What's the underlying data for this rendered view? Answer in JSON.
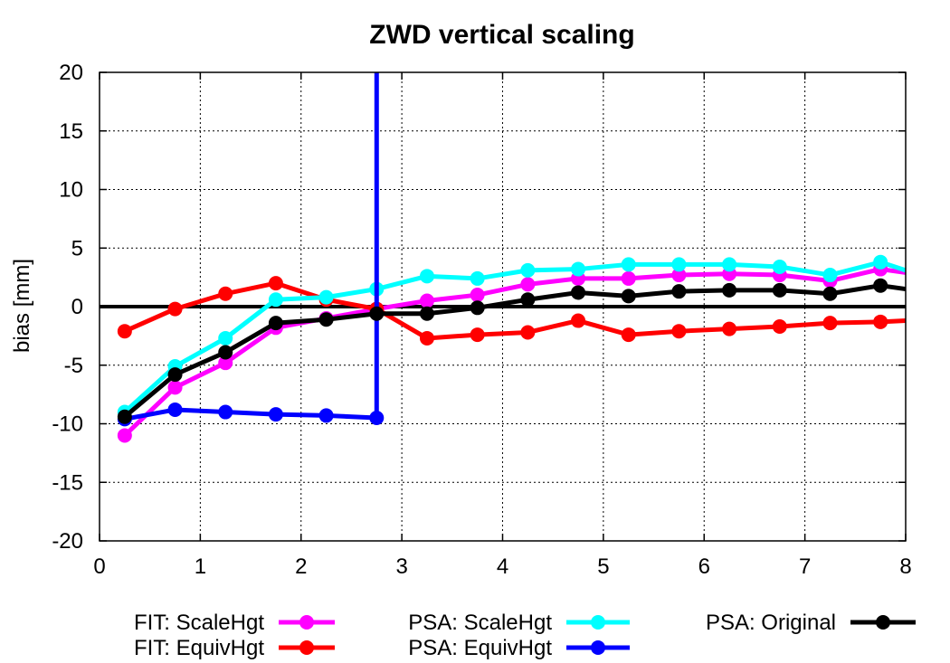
{
  "chart_data": {
    "type": "line",
    "title": "ZWD vertical scaling",
    "xlabel": "",
    "ylabel": "bias [mm]",
    "xlim": [
      0,
      8
    ],
    "ylim": [
      -20,
      20
    ],
    "x_ticks": [
      "0",
      "1",
      "2",
      "3",
      "4",
      "5",
      "6",
      "7",
      "8"
    ],
    "y_ticks": [
      "20",
      "15",
      "10",
      "5",
      "0",
      "-5",
      "-10",
      "-15",
      "-20"
    ],
    "grid": true,
    "zero_line": true,
    "legend_position": "bottom",
    "series": [
      {
        "name": "FIT: ScaleHgt",
        "color": "#ff00ff",
        "points": [
          [
            0.25,
            -11.0
          ],
          [
            0.75,
            -6.9
          ],
          [
            1.25,
            -4.8
          ],
          [
            1.75,
            -1.8
          ],
          [
            2.25,
            -1.0
          ],
          [
            2.75,
            -0.2
          ],
          [
            3.25,
            0.5
          ],
          [
            3.75,
            1.0
          ],
          [
            4.25,
            1.9
          ],
          [
            4.75,
            2.4
          ],
          [
            5.25,
            2.4
          ],
          [
            5.75,
            2.7
          ],
          [
            6.25,
            2.8
          ],
          [
            6.75,
            2.7
          ],
          [
            7.25,
            2.2
          ],
          [
            7.75,
            3.2
          ],
          [
            8.0,
            2.9
          ]
        ]
      },
      {
        "name": "FIT: EquivHgt",
        "color": "#ff0000",
        "points": [
          [
            0.25,
            -2.1
          ],
          [
            0.75,
            -0.2
          ],
          [
            1.25,
            1.1
          ],
          [
            1.75,
            2.0
          ],
          [
            2.25,
            0.6
          ],
          [
            2.75,
            -0.2
          ],
          [
            3.25,
            -2.7
          ],
          [
            3.75,
            -2.4
          ],
          [
            4.25,
            -2.2
          ],
          [
            4.75,
            -1.2
          ],
          [
            5.25,
            -2.4
          ],
          [
            5.75,
            -2.1
          ],
          [
            6.25,
            -1.9
          ],
          [
            6.75,
            -1.7
          ],
          [
            7.25,
            -1.4
          ],
          [
            7.75,
            -1.3
          ],
          [
            8.0,
            -1.2
          ]
        ]
      },
      {
        "name": "PSA: ScaleHgt",
        "color": "#00ffff",
        "points": [
          [
            0.25,
            -9.0
          ],
          [
            0.75,
            -5.1
          ],
          [
            1.25,
            -2.7
          ],
          [
            1.75,
            0.6
          ],
          [
            2.25,
            0.8
          ],
          [
            2.75,
            1.5
          ],
          [
            3.25,
            2.6
          ],
          [
            3.75,
            2.4
          ],
          [
            4.25,
            3.1
          ],
          [
            4.75,
            3.2
          ],
          [
            5.25,
            3.6
          ],
          [
            5.75,
            3.6
          ],
          [
            6.25,
            3.6
          ],
          [
            6.75,
            3.4
          ],
          [
            7.25,
            2.7
          ],
          [
            7.75,
            3.8
          ],
          [
            8.0,
            3.1
          ]
        ]
      },
      {
        "name": "PSA: EquivHgt",
        "color": "#0000ff",
        "points": [
          [
            0.25,
            -9.6
          ],
          [
            0.75,
            -8.8
          ],
          [
            1.25,
            -9.0
          ],
          [
            1.75,
            -9.2
          ],
          [
            2.25,
            -9.3
          ],
          [
            2.75,
            -9.5
          ]
        ],
        "spike": {
          "x": 2.75,
          "from": -9.5,
          "to": 20
        }
      },
      {
        "name": "PSA: Original",
        "color": "#000000",
        "points": [
          [
            0.25,
            -9.4
          ],
          [
            0.75,
            -5.8
          ],
          [
            1.25,
            -3.9
          ],
          [
            1.75,
            -1.4
          ],
          [
            2.25,
            -1.1
          ],
          [
            2.75,
            -0.6
          ],
          [
            3.25,
            -0.6
          ],
          [
            3.75,
            -0.1
          ],
          [
            4.25,
            0.6
          ],
          [
            4.75,
            1.2
          ],
          [
            5.25,
            0.9
          ],
          [
            5.75,
            1.3
          ],
          [
            6.25,
            1.4
          ],
          [
            6.75,
            1.4
          ],
          [
            7.25,
            1.1
          ],
          [
            7.75,
            1.8
          ],
          [
            8.0,
            1.5
          ]
        ]
      }
    ]
  }
}
